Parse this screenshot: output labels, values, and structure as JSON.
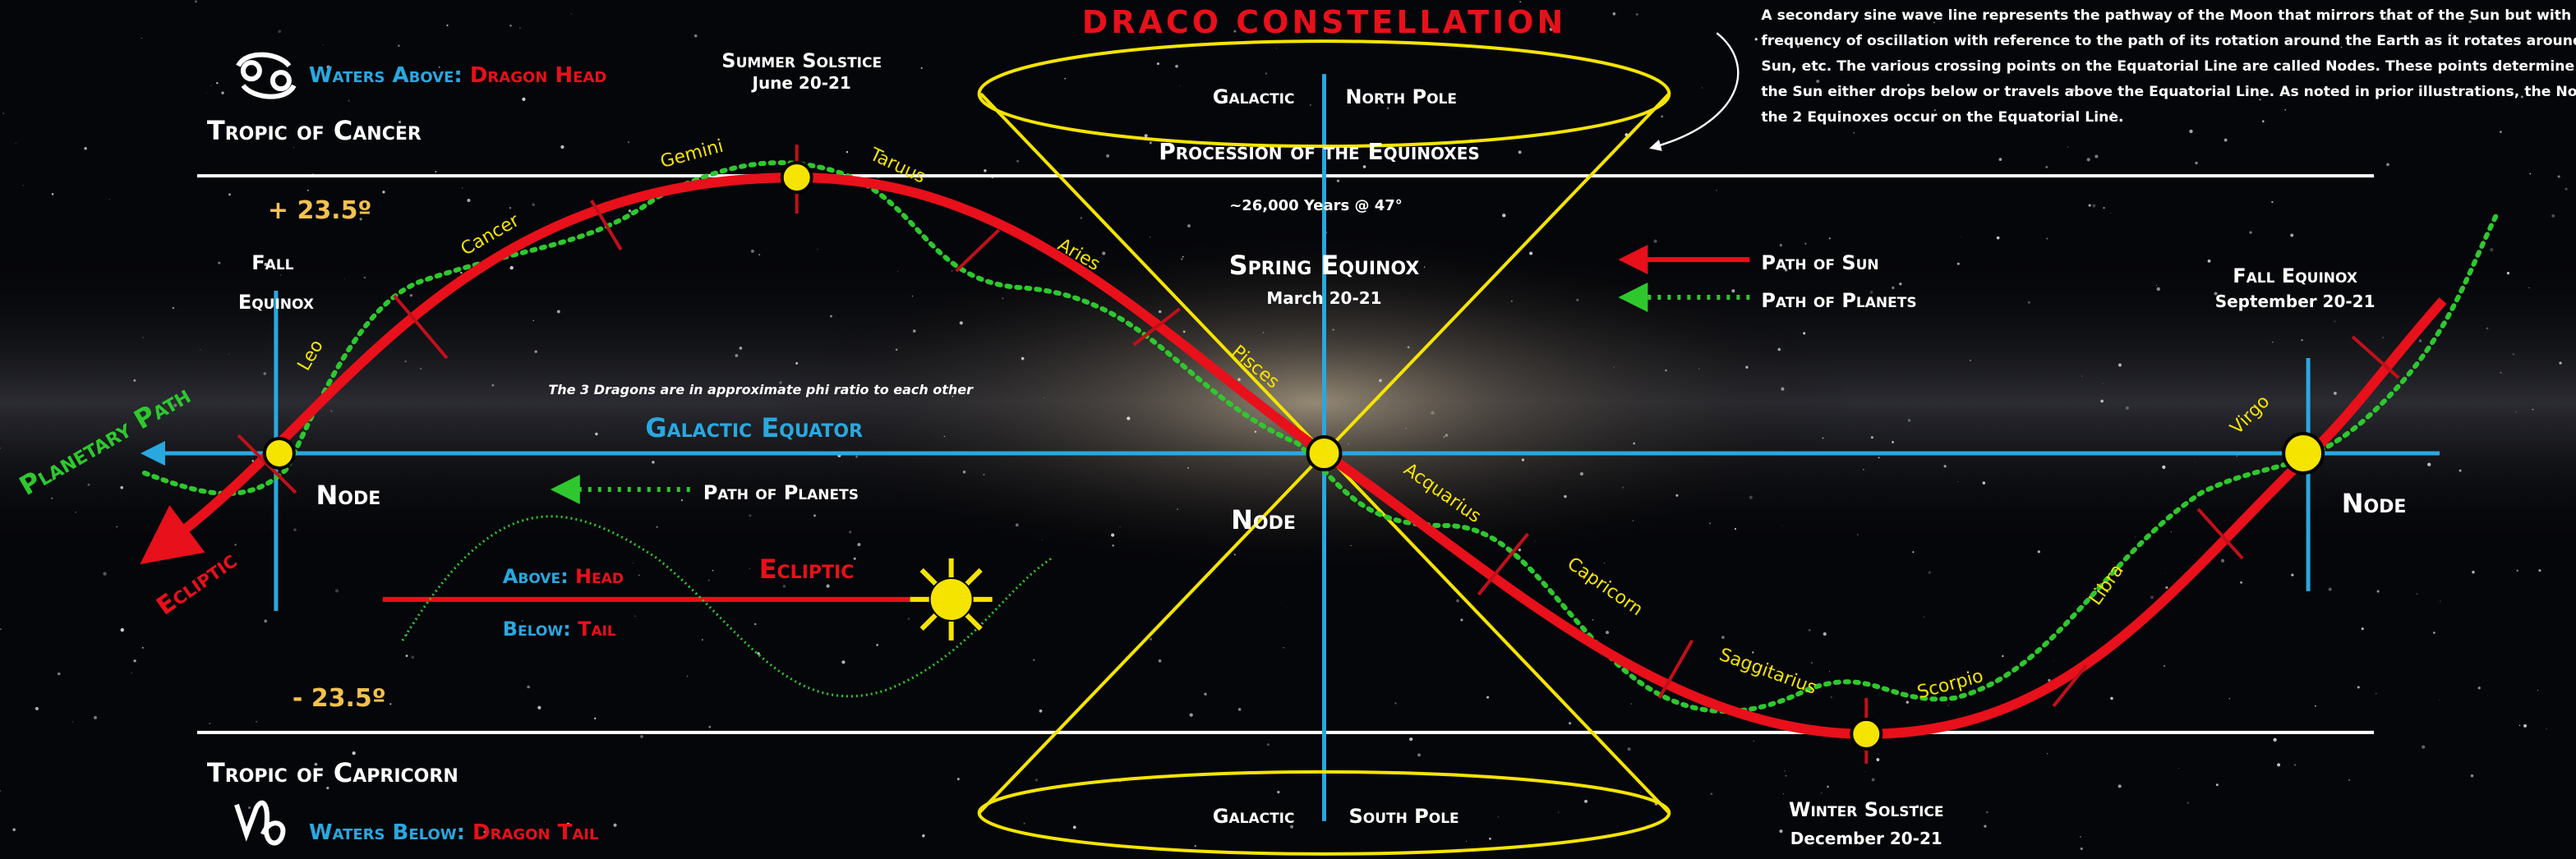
{
  "title": "DRACO CONSTELLATION",
  "description": {
    "lines": [
      "A secondary sine wave line represents the pathway of the Moon that mirrors that of the Sun but with higher",
      "frequency of oscillation with reference to the path of its rotation around the Earth as it rotates around the",
      "Sun, etc. The various crossing points on the Equatorial Line are called Nodes. These points determine when",
      "the Sun either drops below or travels above the Equatorial Line. As noted in prior illustrations, the Nodes on",
      "the 2 Equinoxes occur on the Equatorial Line."
    ]
  },
  "waters_above": {
    "label": "Waters Above:",
    "value": "Dragon Head"
  },
  "waters_below": {
    "label": "Waters Below:",
    "value": "Dragon Tail"
  },
  "tropic_cancer": "Tropic of Cancer",
  "tropic_capricorn": "Tropic of Capricorn",
  "plus_degrees": "+ 23.5º",
  "minus_degrees": "- 23.5º",
  "summer_solstice": {
    "name": "Summer Solstice",
    "date": "June 20-21"
  },
  "winter_solstice": {
    "name": "Winter Solstice",
    "date": "December 20-21"
  },
  "spring_equinox": {
    "name": "Spring Equinox",
    "date": "March 20-21"
  },
  "fall_equinox_right": {
    "name": "Fall Equinox",
    "date": "September 20-21"
  },
  "fall_equinox_left": {
    "line1": "Fall",
    "line2": "Equinox"
  },
  "north_pole": {
    "left": "Galactic",
    "right": "North Pole"
  },
  "south_pole": {
    "left": "Galactic",
    "right": "South Pole"
  },
  "procession": "Procession of the Equinoxes",
  "years": "~26,000 Years @ 47°",
  "legend": {
    "sun": "Path of Sun",
    "planets": "Path of Planets"
  },
  "planetary_path": "Planetary Path",
  "ecliptic_left": "Ecliptic",
  "nodes": [
    "Node",
    "Node",
    "Node"
  ],
  "phi_note": "The 3 Dragons are in approximate phi ratio to each other",
  "galactic_equator": "Galactic Equator",
  "path_of_planets_note": "Path of Planets",
  "inset": {
    "above_label": "Above:",
    "above_value": "Head",
    "below_label": "Below:",
    "below_value": "Tail",
    "ecliptic": "Ecliptic"
  },
  "zodiac": [
    "Gemini",
    "Taruus",
    "Cancer",
    "Aries",
    "Leo",
    "Pisces",
    "Acquarius",
    "Capricorn",
    "Saggitarius",
    "Scorpio",
    "Libra",
    "Virgo"
  ]
}
